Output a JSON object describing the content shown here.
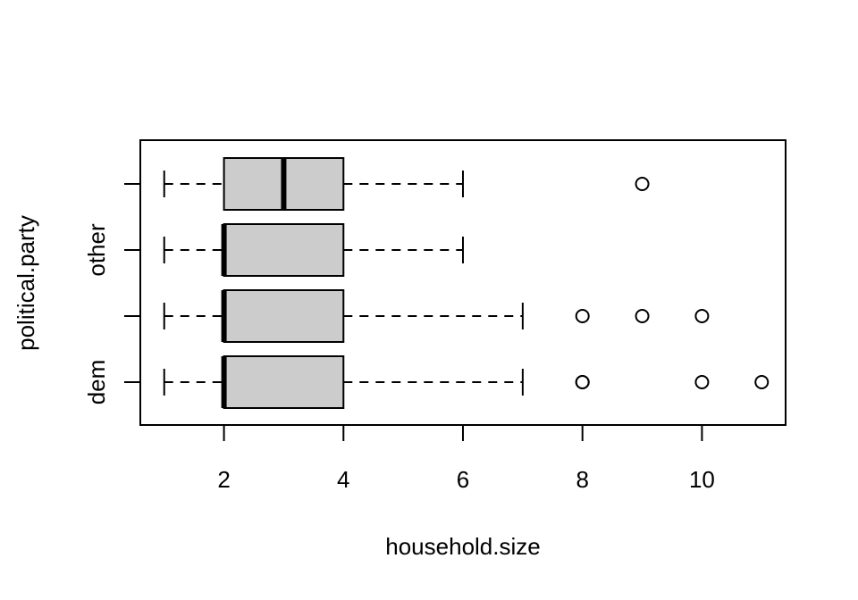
{
  "chart_data": {
    "type": "boxplot",
    "orientation": "horizontal",
    "xlabel": "household.size",
    "ylabel": "political.party",
    "xlim": [
      0.6,
      11.4
    ],
    "x_ticks": [
      2,
      4,
      6,
      8,
      10
    ],
    "y_tick_labels_shown": [
      "dem",
      "",
      "other",
      ""
    ],
    "grid": false,
    "legend": "none",
    "box_fill": "#cccccc",
    "series": [
      {
        "category_label": "dem",
        "min": 1,
        "q1": 2,
        "median": 2,
        "q3": 4,
        "max": 7,
        "outliers": [
          8,
          8,
          10,
          11
        ]
      },
      {
        "category_label": "",
        "min": 1,
        "q1": 2,
        "median": 2,
        "q3": 4,
        "max": 7,
        "outliers": [
          8,
          9,
          10
        ]
      },
      {
        "category_label": "other",
        "min": 1,
        "q1": 2,
        "median": 2,
        "q3": 4,
        "max": 6,
        "outliers": []
      },
      {
        "category_label": "",
        "min": 1,
        "q1": 2,
        "median": 3,
        "q3": 4,
        "max": 6,
        "outliers": [
          9
        ]
      }
    ]
  }
}
